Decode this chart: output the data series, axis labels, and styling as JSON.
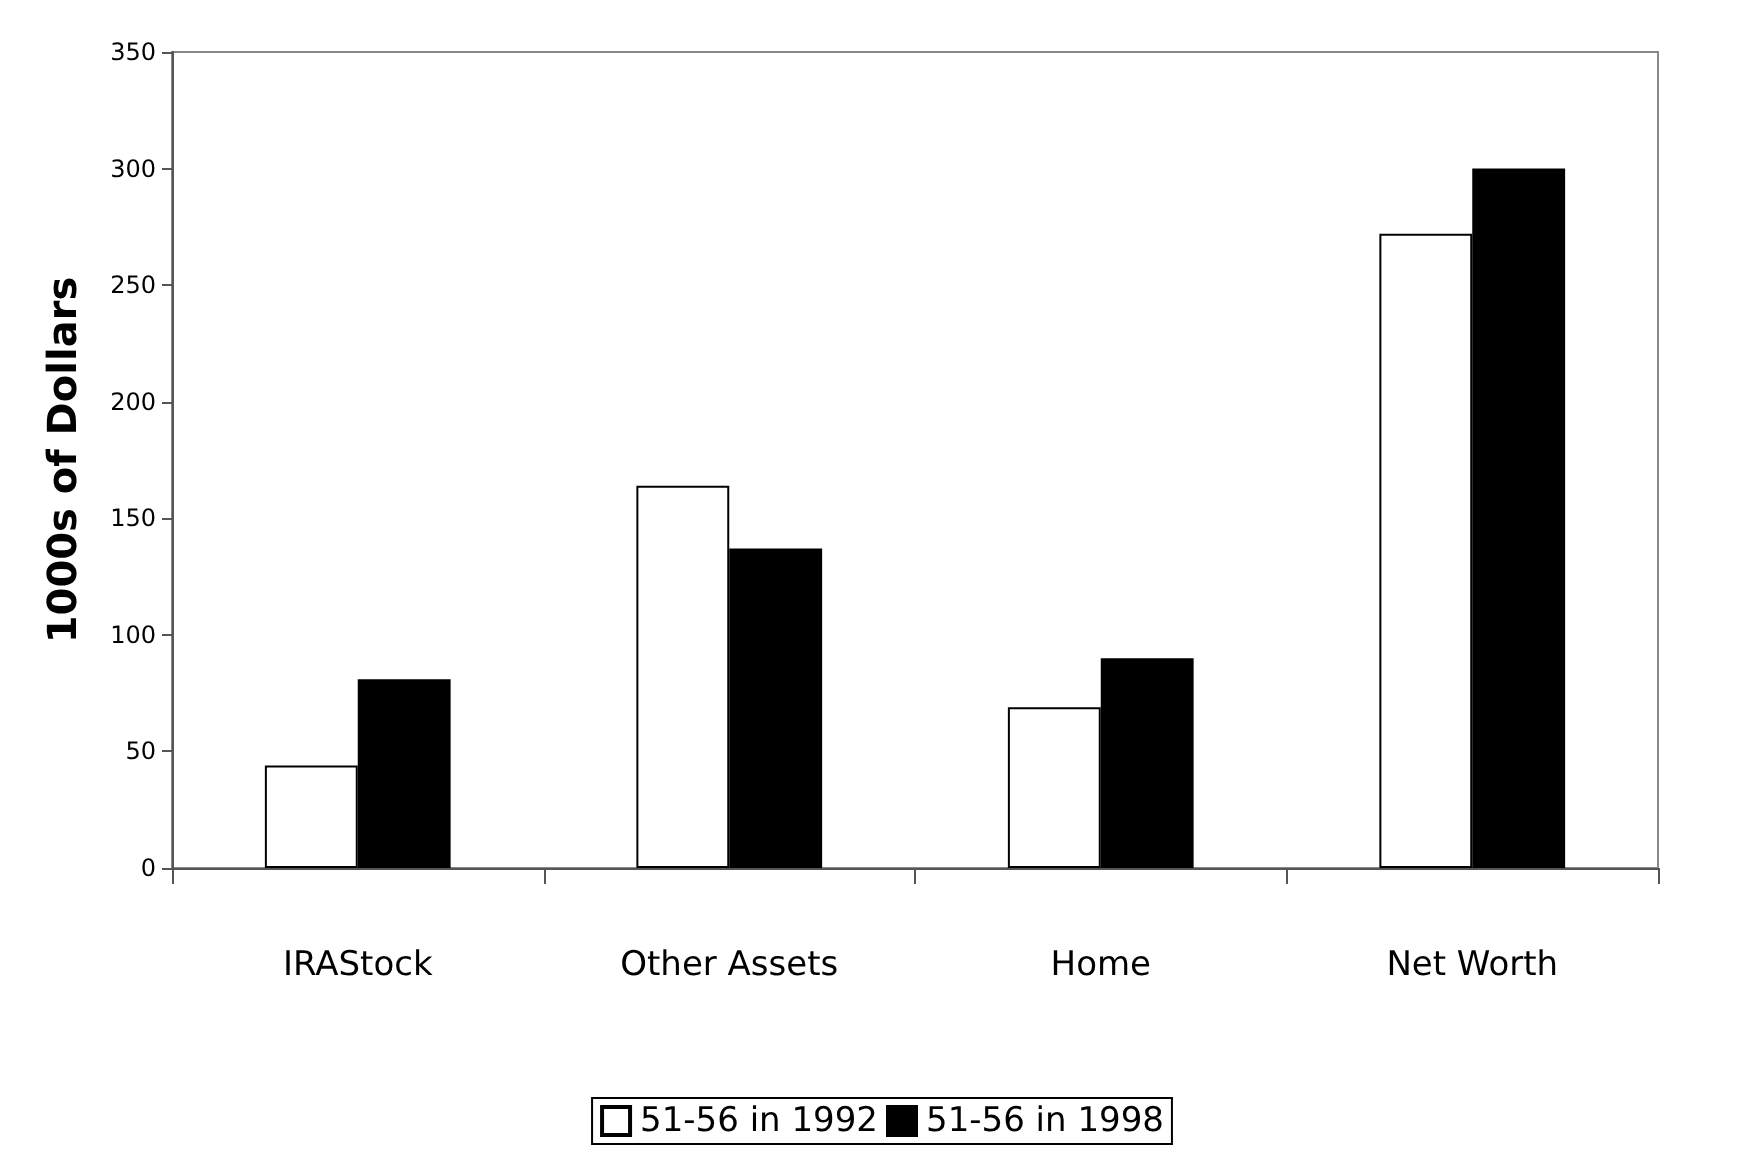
{
  "chart_data": {
    "type": "bar",
    "ylabel": "1000s of Dollars",
    "categories": [
      "IRAStock",
      "Other Assets",
      "Home",
      "Net Worth"
    ],
    "series": [
      {
        "name": "51-56 in 1992",
        "color": "#ffffff",
        "values": [
          44,
          164,
          69,
          272
        ]
      },
      {
        "name": "51-56 in 1998",
        "color": "#000000",
        "values": [
          81,
          137,
          90,
          300
        ]
      }
    ],
    "ylim": [
      0,
      350
    ],
    "yticks": [
      0,
      50,
      100,
      150,
      200,
      250,
      300,
      350
    ],
    "grid": false,
    "legend": "bottom"
  }
}
